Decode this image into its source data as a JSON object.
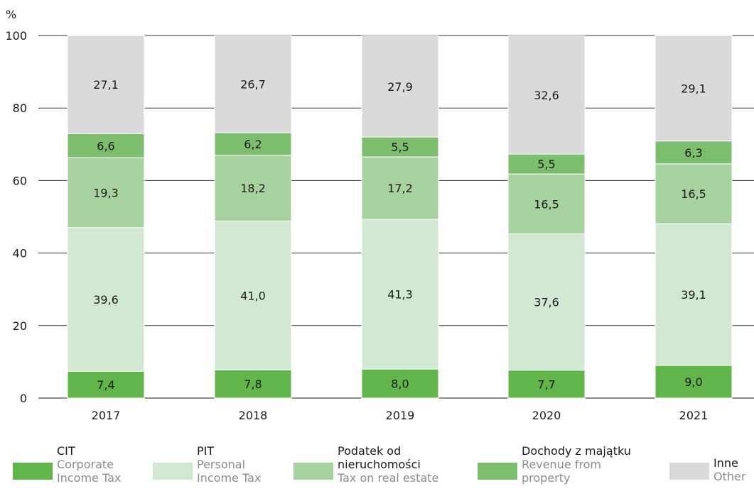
{
  "chart_data": {
    "type": "bar",
    "stacked": true,
    "categories": [
      "2017",
      "2018",
      "2019",
      "2020",
      "2021"
    ],
    "ylabel": "%",
    "ylim": [
      0,
      100
    ],
    "yticks": [
      "0",
      "20",
      "40",
      "60",
      "80",
      "100"
    ],
    "grid": true,
    "series": [
      {
        "name": "CIT",
        "name_en": "Corporate Income Tax",
        "color": "#62b54a",
        "values": [
          7.4,
          7.8,
          8.0,
          7.7,
          9.0
        ],
        "labels": [
          "7,4",
          "7,8",
          "8,0",
          "7,7",
          "9,0"
        ]
      },
      {
        "name": "PIT",
        "name_en": "Personal Income Tax",
        "color": "#d3e8d2",
        "values": [
          39.6,
          41.0,
          41.3,
          37.6,
          39.1
        ],
        "labels": [
          "39,6",
          "41,0",
          "41,3",
          "37,6",
          "39,1"
        ]
      },
      {
        "name": "Podatek od nieruchomości",
        "name_en": "Tax on real estate",
        "color": "#a7d19e",
        "values": [
          19.3,
          18.2,
          17.2,
          16.5,
          16.5
        ],
        "labels": [
          "19,3",
          "18,2",
          "17,2",
          "16,5",
          "16,5"
        ]
      },
      {
        "name": "Dochody z majątku",
        "name_en": "Revenue from property",
        "color": "#7cbd6e",
        "values": [
          6.6,
          6.2,
          5.5,
          5.5,
          6.3
        ],
        "labels": [
          "6,6",
          "6,2",
          "5,5",
          "5,5",
          "6,3"
        ]
      },
      {
        "name": "Inne",
        "name_en": "Other",
        "color": "#dadada",
        "values": [
          27.1,
          26.7,
          27.9,
          32.6,
          29.1
        ],
        "labels": [
          "27,1",
          "26,7",
          "27,9",
          "32,6",
          "29,1"
        ]
      }
    ]
  },
  "legend": [
    {
      "pl": "CIT",
      "en1": "Corporate",
      "en2": "Income Tax",
      "color": "#62b54a"
    },
    {
      "pl": "PIT",
      "en1": "Personal",
      "en2": "Income Tax",
      "color": "#d3e8d2"
    },
    {
      "pl": "Podatek od",
      "pl2": "nieruchomości",
      "en1": "Tax on real estate",
      "color": "#a7d19e"
    },
    {
      "pl": "Dochody z majątku",
      "en1": "Revenue from",
      "en2": "property",
      "color": "#7cbd6e"
    },
    {
      "pl": "Inne",
      "en1": "Other",
      "color": "#dadada"
    }
  ]
}
